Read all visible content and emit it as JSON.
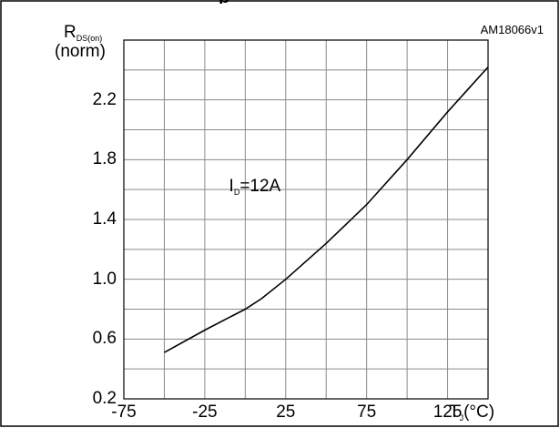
{
  "figure_code": "AM18066v1",
  "title_fragment": "p",
  "chart_data": {
    "type": "line",
    "title": "",
    "xlabel": {
      "main": "T",
      "sub": "J",
      "unit": "(°C)"
    },
    "ylabel": {
      "main": "R",
      "sub": "DS(on)",
      "unit": "(norm)"
    },
    "xlim": [
      -75,
      150
    ],
    "ylim": [
      0.2,
      2.6
    ],
    "x_ticks": [
      "-75",
      "-25",
      "25",
      "75",
      "125"
    ],
    "y_ticks": [
      "0.2",
      "0.6",
      "1.0",
      "1.4",
      "1.8",
      "2.2"
    ],
    "grid": true,
    "annotation": {
      "main": "I",
      "sub": "D",
      "text": "=12A",
      "x": -10,
      "y": 1.6
    },
    "series": [
      {
        "x": [
          -50,
          -25,
          0,
          10,
          25,
          50,
          75,
          100,
          125,
          150
        ],
        "y": [
          0.51,
          0.66,
          0.8,
          0.87,
          1.0,
          1.24,
          1.5,
          1.8,
          2.12,
          2.42
        ]
      }
    ]
  }
}
